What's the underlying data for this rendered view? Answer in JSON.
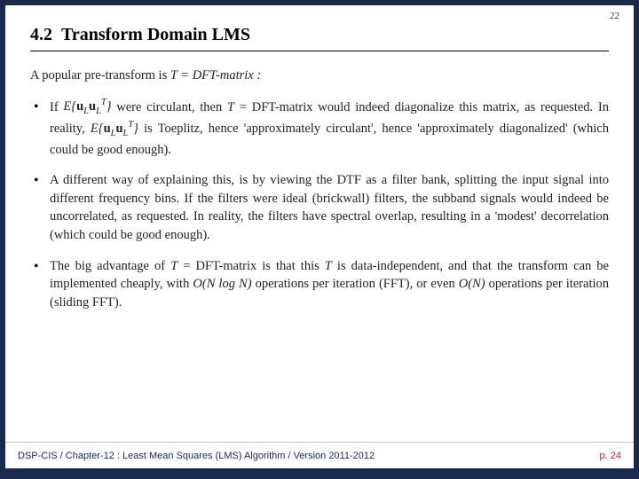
{
  "pageCorner": "22",
  "sectionNumber": "4.2",
  "sectionTitle": "Transform Domain LMS",
  "intro_pre": "A popular pre-transform is ",
  "intro_math": "T = DFT-matrix :",
  "bullet1_a": "If ",
  "bullet1_b": " were circulant, then ",
  "bullet1_c": " = DFT-matrix would indeed diagonalize this matrix, as requested. In reality, ",
  "bullet1_d": " is Toeplitz, hence 'approximately circulant', hence 'approximately diagonalized' (which could be good enough).",
  "bullet2": "A different way of explaining this, is by viewing the DTF as a filter bank, splitting the input signal into different frequency bins. If the filters were ideal (brickwall) filters, the subband signals would indeed be uncorrelated, as requested. In reality, the filters have spectral overlap, resulting in a 'modest' decorrelation (which could be good enough).",
  "bullet3_a": "The big advantage of ",
  "bullet3_b": " = DFT-matrix is that this ",
  "bullet3_c": " is data-independent, and that the transform can be implemented cheaply, with ",
  "bullet3_d": " operations per iteration (FFT), or even ",
  "bullet3_e": " operations per iteration (sliding FFT).",
  "footerLeft": "DSP-CIS  /  Chapter-12 : Least Mean Squares (LMS) Algorithm  /  Version 2011-2012",
  "footerRight": "p. 24",
  "colors": {
    "frame": "#1a2a4a",
    "paper": "#ffffff",
    "text": "#222222",
    "footerLeft": "#1a2a6a",
    "footerRight": "#a03030"
  },
  "typography": {
    "titleFontSize": 20,
    "bodyFontSize": 14.5,
    "footerFontSize": 11
  }
}
